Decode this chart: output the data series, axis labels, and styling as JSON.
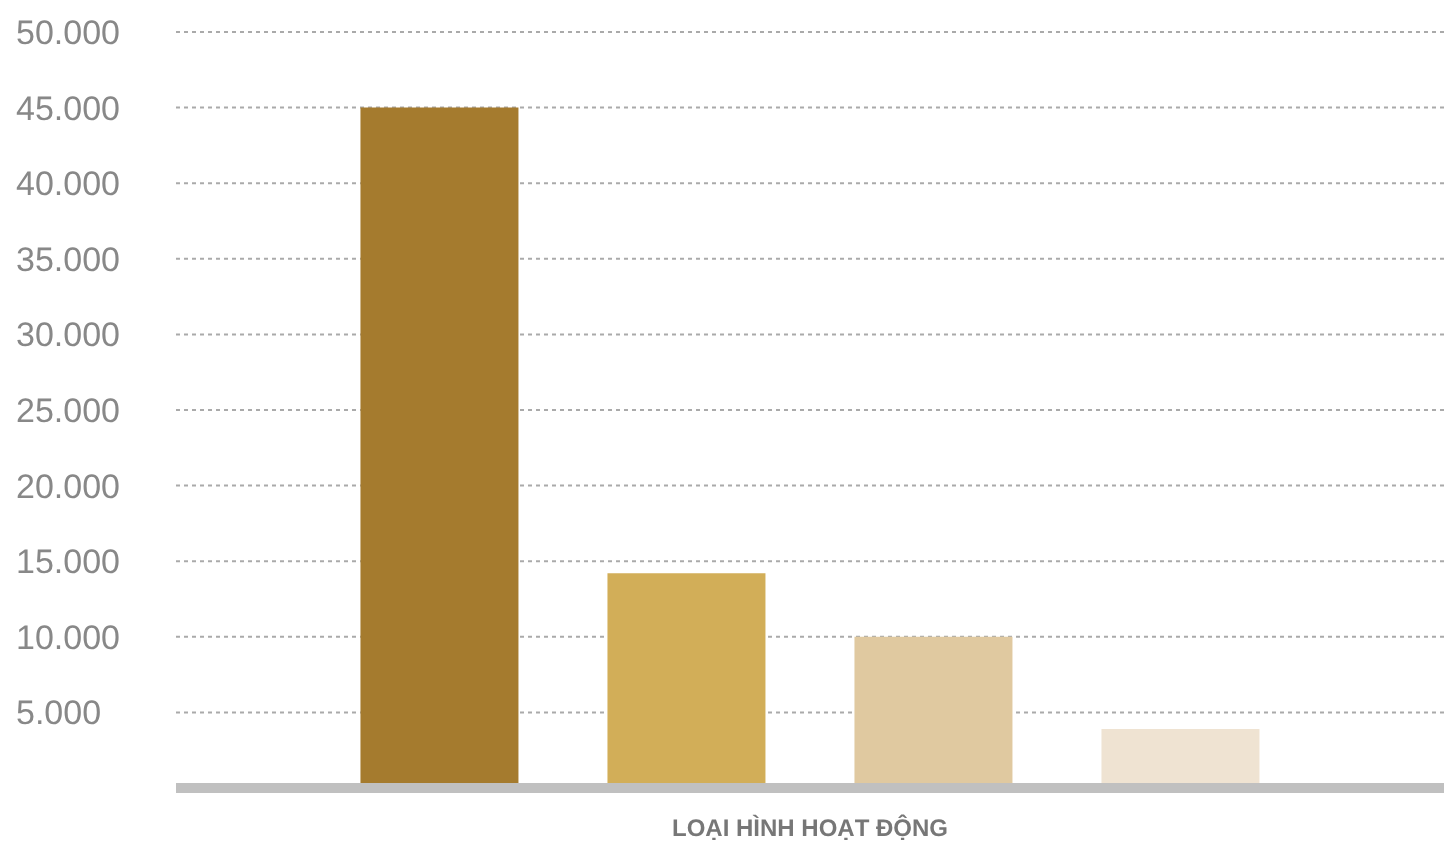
{
  "chart_data": {
    "type": "bar",
    "xlabel": "LOẠI HÌNH HOẠT ĐỘNG",
    "categories": [
      null,
      null,
      null,
      null
    ],
    "values": [
      45000,
      14200,
      10000,
      3900
    ],
    "colors": [
      "#a57b2e",
      "#d2ae58",
      "#e0c9a0",
      "#efe3d2"
    ],
    "ylim": [
      0,
      50000
    ],
    "yticks": [
      {
        "value": 5000,
        "label": "5.000"
      },
      {
        "value": 10000,
        "label": "10.000"
      },
      {
        "value": 15000,
        "label": "15.000"
      },
      {
        "value": 20000,
        "label": "20.000"
      },
      {
        "value": 25000,
        "label": "25.000"
      },
      {
        "value": 30000,
        "label": "30.000"
      },
      {
        "value": 35000,
        "label": "35.000"
      },
      {
        "value": 40000,
        "label": "40.000"
      },
      {
        "value": 45000,
        "label": "45.000"
      },
      {
        "value": 50000,
        "label": "50.000"
      }
    ],
    "grid": "y"
  }
}
